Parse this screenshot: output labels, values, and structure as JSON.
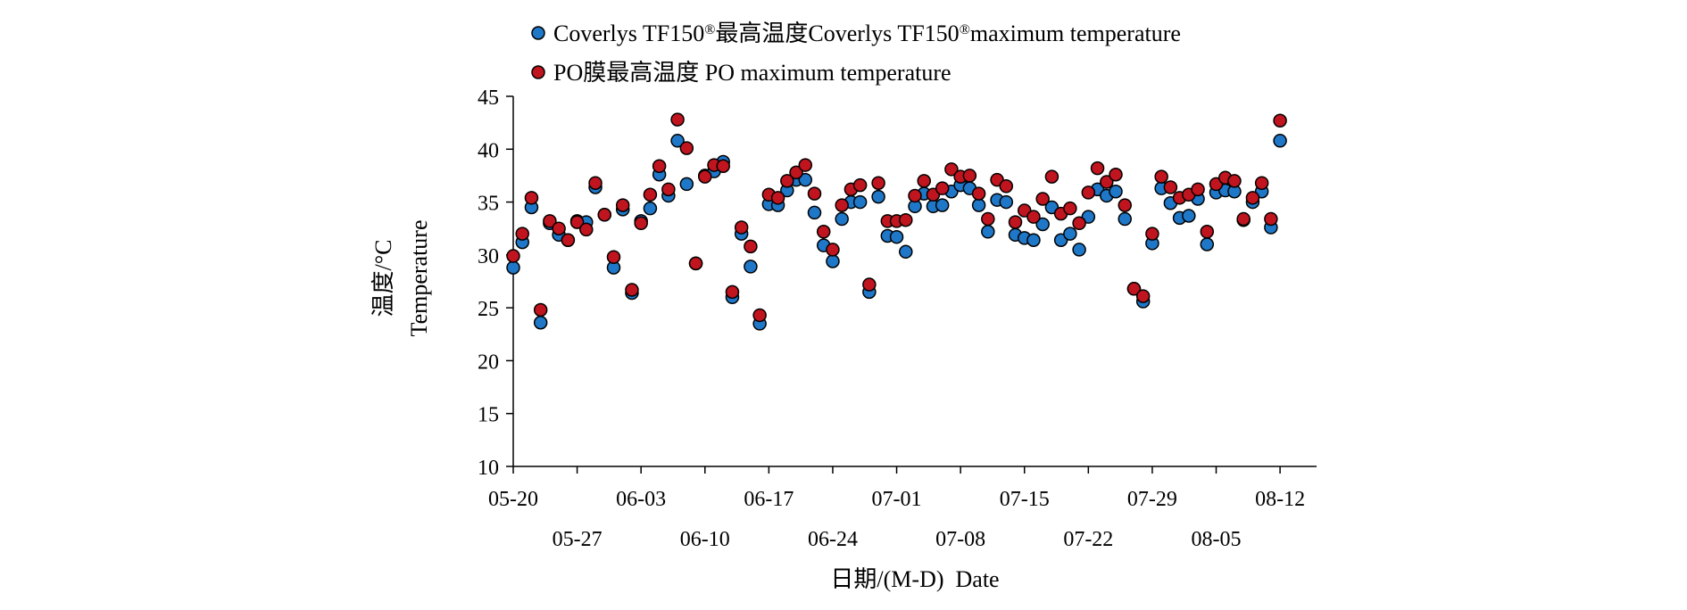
{
  "chart_data": {
    "type": "scatter",
    "xlabel": "日期/(M-D)  Date",
    "ylabel_cn": "温度/°C",
    "ylabel_en": "Temperature",
    "ylim": [
      10,
      45
    ],
    "yticks": [
      10,
      15,
      20,
      25,
      30,
      35,
      40,
      45
    ],
    "xlim": [
      "05-20",
      "08-16"
    ],
    "xticks_upper": [
      "05-20",
      "06-03",
      "06-17",
      "07-01",
      "07-15",
      "07-29",
      "08-12"
    ],
    "xticks_lower": [
      "05-27",
      "06-10",
      "06-24",
      "07-08",
      "07-22",
      "08-05"
    ],
    "grid": false,
    "legend_position": "top",
    "series": [
      {
        "name": "Coverlys TF150®最高温度Coverlys TF150®maximum temperature",
        "name_main": "Coverlys TF150",
        "name_mid": "最高温度Coverlys TF150",
        "name_end": "maximum temperature",
        "sup": "®",
        "color": "#1f77c8",
        "points": [
          [
            "05-20",
            28.8
          ],
          [
            "05-21",
            31.2
          ],
          [
            "05-22",
            34.5
          ],
          [
            "05-23",
            23.6
          ],
          [
            "05-24",
            33.0
          ],
          [
            "05-25",
            31.9
          ],
          [
            "05-26",
            31.4
          ],
          [
            "05-27",
            33.2
          ],
          [
            "05-28",
            33.1
          ],
          [
            "05-29",
            36.4
          ],
          [
            "05-30",
            33.8
          ],
          [
            "05-31",
            28.8
          ],
          [
            "06-01",
            34.3
          ],
          [
            "06-02",
            26.4
          ],
          [
            "06-03",
            33.2
          ],
          [
            "06-04",
            34.4
          ],
          [
            "06-05",
            37.6
          ],
          [
            "06-06",
            35.6
          ],
          [
            "06-07",
            40.8
          ],
          [
            "06-08",
            36.7
          ],
          [
            "06-09",
            29.2
          ],
          [
            "06-10",
            37.5
          ],
          [
            "06-11",
            37.9
          ],
          [
            "06-12",
            38.8
          ],
          [
            "06-13",
            26.0
          ],
          [
            "06-14",
            32.0
          ],
          [
            "06-15",
            28.9
          ],
          [
            "06-16",
            23.5
          ],
          [
            "06-17",
            34.8
          ],
          [
            "06-18",
            34.7
          ],
          [
            "06-19",
            36.1
          ],
          [
            "06-20",
            37.1
          ],
          [
            "06-21",
            37.1
          ],
          [
            "06-22",
            34.0
          ],
          [
            "06-23",
            30.9
          ],
          [
            "06-24",
            29.4
          ],
          [
            "06-25",
            33.4
          ],
          [
            "06-26",
            35.0
          ],
          [
            "06-27",
            35.0
          ],
          [
            "06-28",
            26.5
          ],
          [
            "06-29",
            35.5
          ],
          [
            "06-30",
            31.8
          ],
          [
            "07-01",
            31.7
          ],
          [
            "07-02",
            30.3
          ],
          [
            "07-03",
            34.6
          ],
          [
            "07-04",
            35.8
          ],
          [
            "07-05",
            34.6
          ],
          [
            "07-06",
            34.7
          ],
          [
            "07-07",
            36.0
          ],
          [
            "07-08",
            36.6
          ],
          [
            "07-09",
            36.3
          ],
          [
            "07-10",
            34.7
          ],
          [
            "07-11",
            32.2
          ],
          [
            "07-12",
            35.2
          ],
          [
            "07-13",
            35.0
          ],
          [
            "07-14",
            31.9
          ],
          [
            "07-15",
            31.6
          ],
          [
            "07-16",
            31.4
          ],
          [
            "07-17",
            32.9
          ],
          [
            "07-18",
            34.5
          ],
          [
            "07-19",
            31.4
          ],
          [
            "07-20",
            32.0
          ],
          [
            "07-21",
            30.5
          ],
          [
            "07-22",
            33.6
          ],
          [
            "07-23",
            36.2
          ],
          [
            "07-24",
            35.6
          ],
          [
            "07-25",
            36.0
          ],
          [
            "07-26",
            33.4
          ],
          [
            "07-27",
            26.8
          ],
          [
            "07-28",
            25.6
          ],
          [
            "07-29",
            31.1
          ],
          [
            "07-30",
            36.3
          ],
          [
            "07-31",
            34.9
          ],
          [
            "08-01",
            33.5
          ],
          [
            "08-02",
            33.7
          ],
          [
            "08-03",
            35.3
          ],
          [
            "08-04",
            31.0
          ],
          [
            "08-05",
            35.9
          ],
          [
            "08-06",
            36.1
          ],
          [
            "08-07",
            36.0
          ],
          [
            "08-08",
            33.3
          ],
          [
            "08-09",
            35.0
          ],
          [
            "08-10",
            36.0
          ],
          [
            "08-11",
            32.6
          ],
          [
            "08-12",
            40.8
          ]
        ]
      },
      {
        "name": "PO膜最高温度 PO maximum temperature",
        "color": "#c0141e",
        "points": [
          [
            "05-20",
            29.9
          ],
          [
            "05-21",
            32.0
          ],
          [
            "05-22",
            35.4
          ],
          [
            "05-23",
            24.8
          ],
          [
            "05-24",
            33.2
          ],
          [
            "05-25",
            32.5
          ],
          [
            "05-26",
            31.4
          ],
          [
            "05-27",
            33.1
          ],
          [
            "05-28",
            32.4
          ],
          [
            "05-29",
            36.8
          ],
          [
            "05-30",
            33.8
          ],
          [
            "05-31",
            29.8
          ],
          [
            "06-01",
            34.7
          ],
          [
            "06-02",
            26.7
          ],
          [
            "06-03",
            33.0
          ],
          [
            "06-04",
            35.7
          ],
          [
            "06-05",
            38.4
          ],
          [
            "06-06",
            36.2
          ],
          [
            "06-07",
            42.8
          ],
          [
            "06-08",
            40.1
          ],
          [
            "06-09",
            29.2
          ],
          [
            "06-10",
            37.4
          ],
          [
            "06-11",
            38.5
          ],
          [
            "06-12",
            38.4
          ],
          [
            "06-13",
            26.5
          ],
          [
            "06-14",
            32.6
          ],
          [
            "06-15",
            30.8
          ],
          [
            "06-16",
            24.3
          ],
          [
            "06-17",
            35.7
          ],
          [
            "06-18",
            35.4
          ],
          [
            "06-19",
            37.0
          ],
          [
            "06-20",
            37.8
          ],
          [
            "06-21",
            38.5
          ],
          [
            "06-22",
            35.8
          ],
          [
            "06-23",
            32.2
          ],
          [
            "06-24",
            30.5
          ],
          [
            "06-25",
            34.7
          ],
          [
            "06-26",
            36.2
          ],
          [
            "06-27",
            36.6
          ],
          [
            "06-28",
            27.2
          ],
          [
            "06-29",
            36.8
          ],
          [
            "06-30",
            33.2
          ],
          [
            "07-01",
            33.2
          ],
          [
            "07-02",
            33.3
          ],
          [
            "07-03",
            35.6
          ],
          [
            "07-04",
            37.0
          ],
          [
            "07-05",
            35.7
          ],
          [
            "07-06",
            36.3
          ],
          [
            "07-07",
            38.1
          ],
          [
            "07-08",
            37.4
          ],
          [
            "07-09",
            37.5
          ],
          [
            "07-10",
            35.8
          ],
          [
            "07-11",
            33.4
          ],
          [
            "07-12",
            37.1
          ],
          [
            "07-13",
            36.5
          ],
          [
            "07-14",
            33.1
          ],
          [
            "07-15",
            34.2
          ],
          [
            "07-16",
            33.6
          ],
          [
            "07-17",
            35.3
          ],
          [
            "07-18",
            37.4
          ],
          [
            "07-19",
            33.9
          ],
          [
            "07-20",
            34.4
          ],
          [
            "07-21",
            33.0
          ],
          [
            "07-22",
            35.9
          ],
          [
            "07-23",
            38.2
          ],
          [
            "07-24",
            36.9
          ],
          [
            "07-25",
            37.6
          ],
          [
            "07-26",
            34.7
          ],
          [
            "07-27",
            26.8
          ],
          [
            "07-28",
            26.1
          ],
          [
            "07-29",
            32.0
          ],
          [
            "07-30",
            37.4
          ],
          [
            "07-31",
            36.4
          ],
          [
            "08-01",
            35.4
          ],
          [
            "08-02",
            35.7
          ],
          [
            "08-03",
            36.2
          ],
          [
            "08-04",
            32.2
          ],
          [
            "08-05",
            36.7
          ],
          [
            "08-06",
            37.3
          ],
          [
            "08-07",
            37.0
          ],
          [
            "08-08",
            33.4
          ],
          [
            "08-09",
            35.4
          ],
          [
            "08-10",
            36.8
          ],
          [
            "08-11",
            33.4
          ],
          [
            "08-12",
            42.7
          ]
        ]
      }
    ]
  }
}
